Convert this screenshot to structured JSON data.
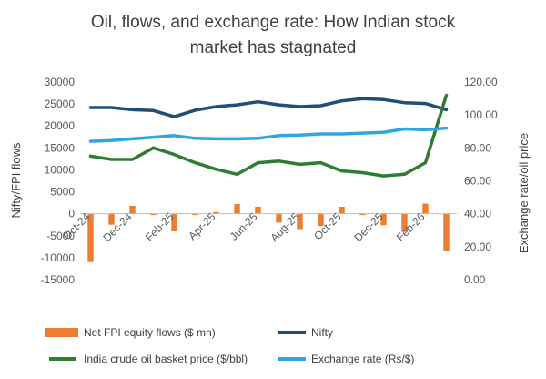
{
  "chart_data": {
    "type": "bar+line",
    "title_lines": [
      "Oil, flows, and exchange rate: How Indian stock",
      "market has stagnated"
    ],
    "ylabel_left": "Nifty/FPI flows",
    "ylabel_right": "Exchange rate/oil price",
    "ylim_left": [
      -15000,
      30000
    ],
    "ylim_right": [
      0,
      120
    ],
    "yticks_left": [
      "30000",
      "25000",
      "20000",
      "15000",
      "10000",
      "5000",
      "0",
      "-5000",
      "-10000",
      "-15000"
    ],
    "yticks_right": [
      "120.00",
      "100.00",
      "80.00",
      "60.00",
      "40.00",
      "20.00",
      "0.00"
    ],
    "months": [
      "Oct-24",
      "Nov-24",
      "Dec-24",
      "Jan-25",
      "Feb-25",
      "Mar-25",
      "Apr-25",
      "May-25",
      "Jun-25",
      "Jul-25",
      "Aug-25",
      "Sep-25",
      "Oct-25",
      "Nov-25",
      "Dec-25",
      "Jan-26",
      "Feb-26",
      "Mar-26"
    ],
    "x_tick_labels": [
      "Oct-24",
      "Dec-24",
      "Feb-25",
      "Apr-25",
      "Jun-25",
      "Aug-25",
      "Oct-25",
      "Dec-25",
      "Feb-26"
    ],
    "grid": false,
    "legend_position": "bottom",
    "series": [
      {
        "name": "Net FPI equity flows ($ mn)",
        "kind": "bar",
        "axis": "left",
        "color": "#ED7D31",
        "values": [
          -11000,
          -2500,
          1800,
          -300,
          -4000,
          -300,
          400,
          2200,
          1600,
          -2000,
          -3500,
          -2800,
          1600,
          -300,
          -2600,
          -4100,
          2300,
          -8400
        ]
      },
      {
        "name": "Nifty",
        "kind": "line",
        "axis": "left",
        "color": "#1F4E79",
        "values": [
          24200,
          24200,
          23700,
          23500,
          22100,
          23600,
          24400,
          24800,
          25500,
          24800,
          24400,
          24600,
          25700,
          26200,
          26000,
          25300,
          25100,
          23700
        ]
      },
      {
        "name": "India crude oil basket price ($/bbl)",
        "kind": "line",
        "axis": "right",
        "color": "#2E7D32",
        "values": [
          75,
          73,
          73,
          80,
          76,
          71,
          67,
          64,
          71,
          72,
          70,
          71,
          66,
          65,
          63,
          64,
          71,
          112
        ]
      },
      {
        "name": "Exchange rate (Rs/$)",
        "kind": "line",
        "axis": "right",
        "color": "#2EA7DE",
        "values": [
          84,
          84.5,
          85.5,
          86.5,
          87.5,
          85.8,
          85.5,
          85.5,
          85.8,
          87.5,
          87.8,
          88.5,
          88.5,
          89,
          89.5,
          91.5,
          91,
          92
        ]
      }
    ]
  }
}
